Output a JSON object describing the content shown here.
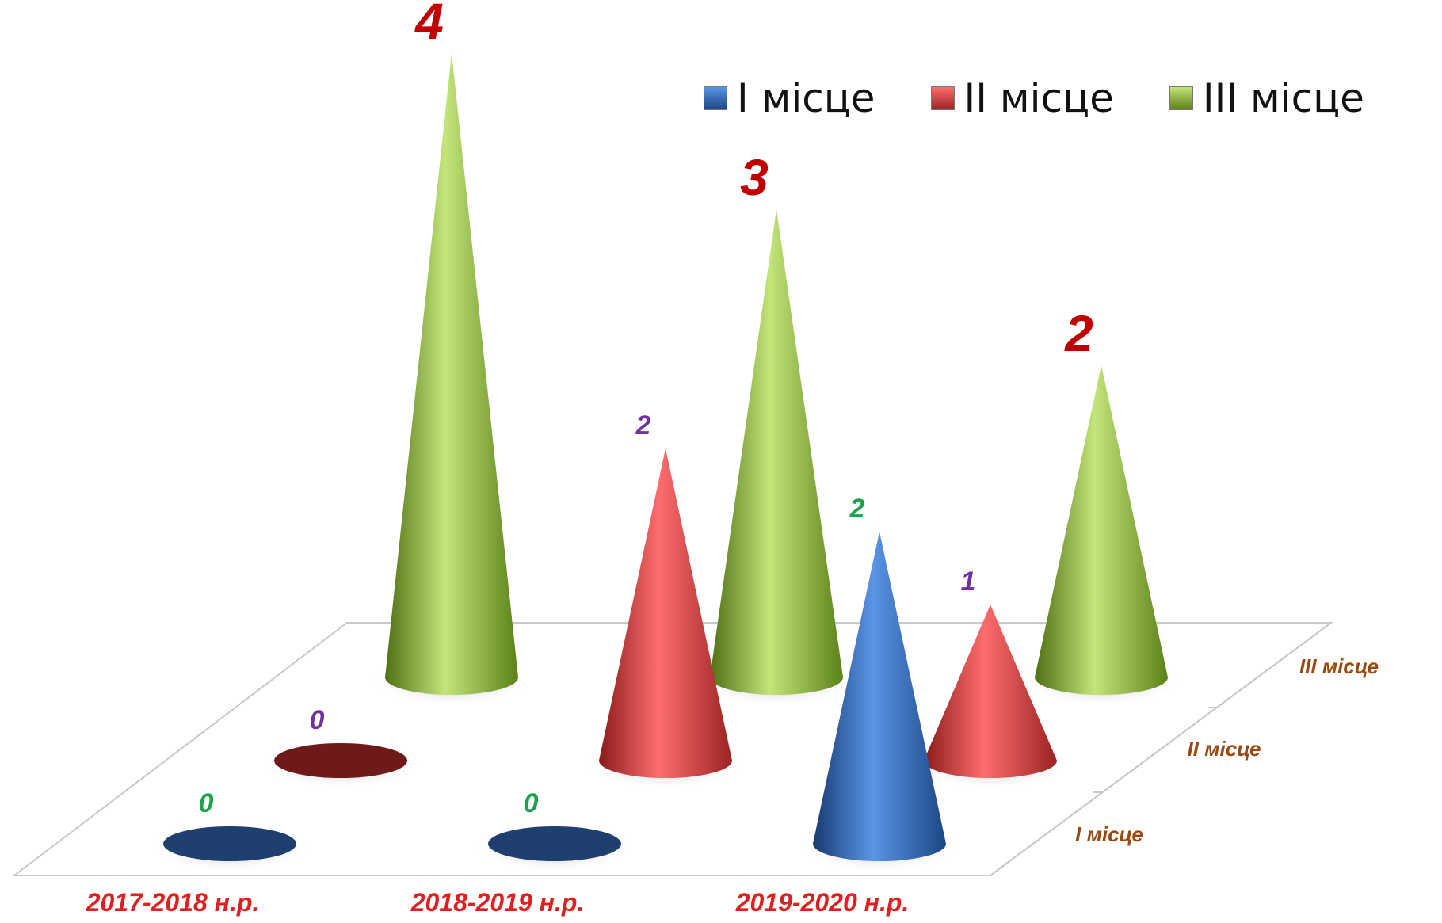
{
  "chart_data": {
    "type": "bar",
    "shape": "3d-cone",
    "categories": [
      "2017-2018 н.р.",
      "2018-2019 н.р.",
      "2019-2020 н.р."
    ],
    "depth_labels": [
      "I місце",
      "II місце",
      "III місце"
    ],
    "series": [
      {
        "name": "I місце",
        "values": [
          0,
          0,
          2
        ],
        "color": "#2f6cc2",
        "label_color": "#1aa34a"
      },
      {
        "name": "II місце",
        "values": [
          0,
          2,
          1
        ],
        "color": "#d83a3a",
        "label_color": "#7030a0"
      },
      {
        "name": "III місце",
        "values": [
          4,
          3,
          2
        ],
        "color": "#86b02e",
        "label_color": "#c00000"
      }
    ],
    "legend_position": "top-right",
    "ylim": [
      0,
      4
    ]
  }
}
